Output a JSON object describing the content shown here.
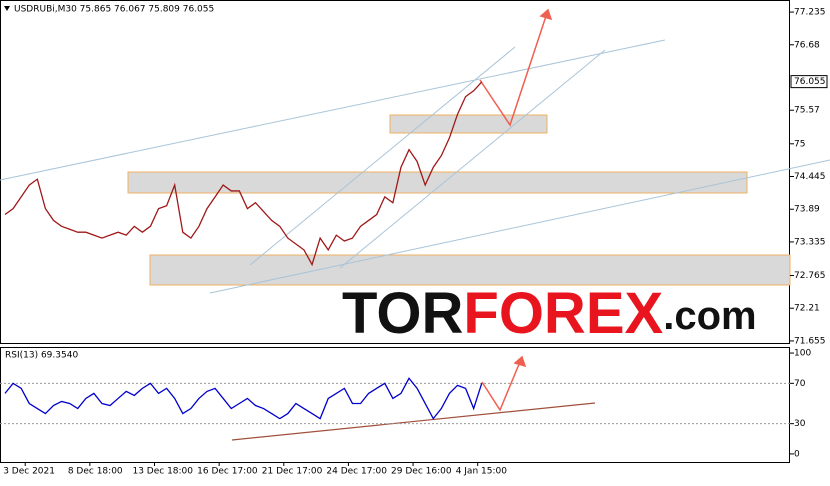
{
  "chart_data": [
    {
      "type": "line",
      "title": "USDRUBi,M30 75.865 76.067 75.809 76.055",
      "x": [
        0,
        1,
        2,
        3,
        4,
        5,
        6,
        7,
        8,
        9,
        10,
        11,
        12,
        13,
        14,
        15,
        16,
        17,
        18,
        19,
        20,
        21,
        22,
        23,
        24,
        25,
        26,
        27,
        28,
        29,
        30,
        31,
        32,
        33,
        34,
        35,
        36,
        37,
        38,
        39,
        40,
        41,
        42,
        43,
        44,
        45,
        46,
        47,
        48,
        49,
        50,
        51,
        52,
        53,
        54,
        55,
        56,
        57,
        58,
        59
      ],
      "values": [
        73.8,
        73.9,
        74.1,
        74.3,
        74.4,
        73.9,
        73.7,
        73.6,
        73.55,
        73.5,
        73.5,
        73.45,
        73.4,
        73.45,
        73.5,
        73.45,
        73.6,
        73.5,
        73.6,
        73.9,
        73.95,
        74.3,
        73.5,
        73.4,
        73.6,
        73.9,
        74.1,
        74.3,
        74.2,
        74.2,
        73.9,
        74.0,
        73.85,
        73.7,
        73.6,
        73.4,
        73.3,
        73.2,
        72.95,
        73.4,
        73.2,
        73.45,
        73.35,
        73.4,
        73.6,
        73.7,
        73.8,
        74.1,
        74.0,
        74.6,
        74.9,
        74.7,
        74.3,
        74.6,
        74.8,
        75.1,
        75.5,
        75.8,
        75.9,
        76.05
      ],
      "color": "#a01818",
      "xlim": [
        -0.62,
        97.15
      ],
      "ylim": [
        71.62,
        77.44
      ],
      "yticks": [
        77.235,
        76.68,
        75.57,
        75.0,
        74.445,
        73.89,
        73.335,
        72.765,
        72.21,
        71.655
      ],
      "last_price": 76.055,
      "watermark": [
        "TOR",
        "FOREX",
        ".com"
      ]
    },
    {
      "type": "line",
      "title": "RSI(13) 69.3540",
      "x": [
        0,
        1,
        2,
        3,
        4,
        5,
        6,
        7,
        8,
        9,
        10,
        11,
        12,
        13,
        14,
        15,
        16,
        17,
        18,
        19,
        20,
        21,
        22,
        23,
        24,
        25,
        26,
        27,
        28,
        29,
        30,
        31,
        32,
        33,
        34,
        35,
        36,
        37,
        38,
        39,
        40,
        41,
        42,
        43,
        44,
        45,
        46,
        47,
        48,
        49,
        50,
        51,
        52,
        53,
        54,
        55,
        56,
        57,
        58,
        59
      ],
      "values": [
        60,
        70,
        65,
        50,
        45,
        40,
        48,
        52,
        50,
        45,
        55,
        60,
        50,
        48,
        55,
        62,
        58,
        65,
        70,
        60,
        65,
        55,
        40,
        45,
        55,
        62,
        65,
        55,
        45,
        50,
        55,
        48,
        45,
        40,
        35,
        40,
        50,
        45,
        40,
        35,
        55,
        60,
        65,
        50,
        50,
        60,
        65,
        70,
        55,
        60,
        75,
        65,
        50,
        35,
        45,
        60,
        68,
        65,
        45,
        70
      ],
      "color": "#0000cc",
      "xlim": [
        -0.62,
        97.15
      ],
      "ylim": [
        -8,
        106
      ],
      "yticks": [
        100,
        70,
        30,
        0
      ],
      "level_lines": [
        70,
        30
      ],
      "xticks": [
        {
          "value": 2.5,
          "label": "3 Dec 2021"
        },
        {
          "value": 10.5,
          "label": "8 Dec 18:00"
        },
        {
          "value": 18.5,
          "label": "13 Dec 18:00"
        },
        {
          "value": 26.5,
          "label": "16 Dec 17:00"
        },
        {
          "value": 34.5,
          "label": "21 Dec 17:00"
        },
        {
          "value": 42.5,
          "label": "24 Dec 17:00"
        },
        {
          "value": 50.5,
          "label": "29 Dec 16:00"
        },
        {
          "value": 58.5,
          "label": "4 Jan 15:00"
        }
      ]
    }
  ]
}
